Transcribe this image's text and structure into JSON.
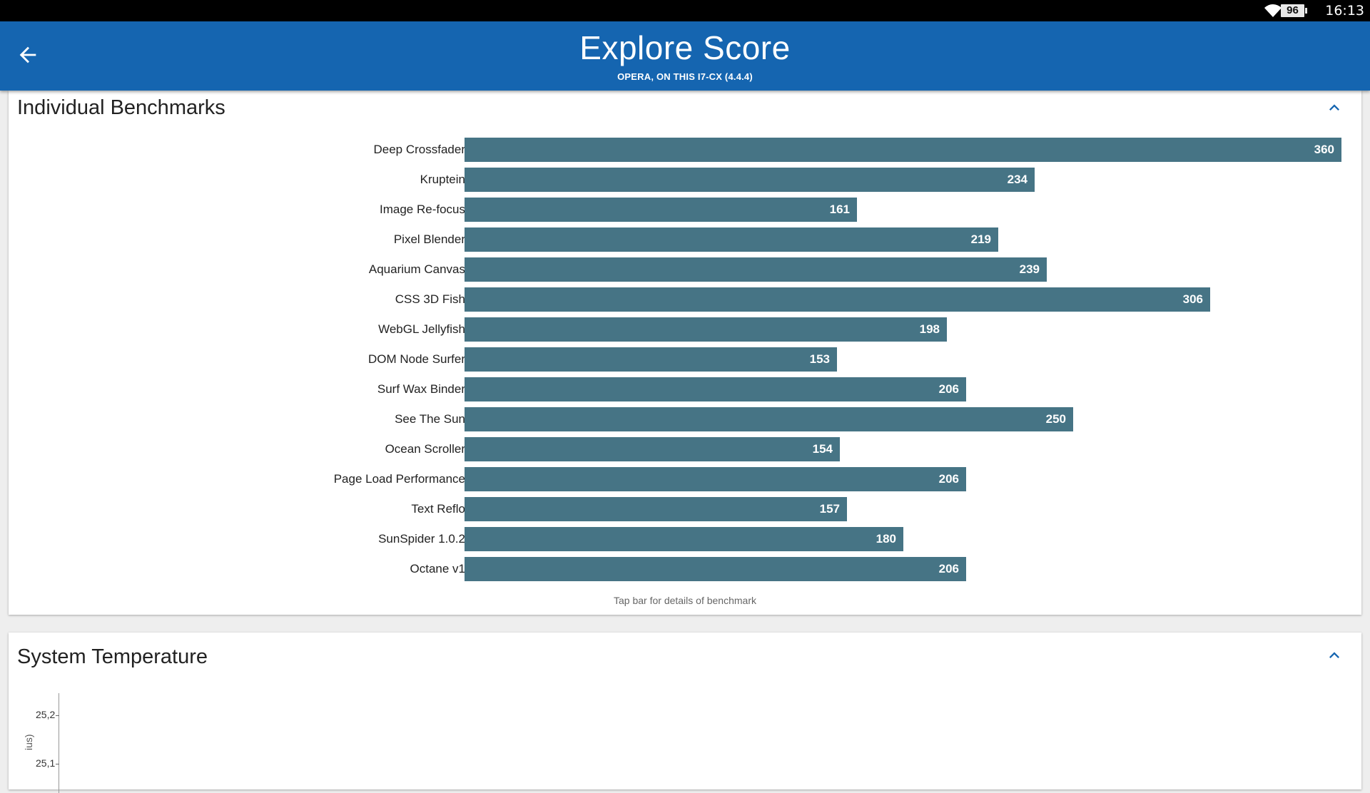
{
  "status_bar": {
    "battery": "96",
    "time": "16:13"
  },
  "app_bar": {
    "title": "Explore Score",
    "subtitle": "OPERA, ON THIS I7-CX (4.4.4)"
  },
  "benchmarks_card": {
    "title": "Individual Benchmarks",
    "hint": "Tap bar for details of benchmark",
    "bar_color": "#467485"
  },
  "chart_data": {
    "type": "bar",
    "orientation": "horizontal",
    "categories": [
      "Deep Crossfader",
      "Kruptein",
      "Image Re-focus",
      "Pixel Blender",
      "Aquarium Canvas",
      "CSS 3D Fish",
      "WebGL Jellyfish",
      "DOM Node Surfer",
      "Surf Wax Binder",
      "See The Sun",
      "Ocean Scroller",
      "Page Load Performance",
      "Text Reflo",
      "SunSpider 1.0.2",
      "Octane v1"
    ],
    "values": [
      360,
      234,
      161,
      219,
      239,
      306,
      198,
      153,
      206,
      250,
      154,
      206,
      157,
      180,
      206
    ],
    "xlim": [
      0,
      360
    ]
  },
  "temperature_card": {
    "title": "System Temperature",
    "y_ticks": [
      "25,2",
      "25,1"
    ],
    "ylabel_partial": "ius)"
  },
  "colors": {
    "app_bar": "#1565b0",
    "accent": "#1565b0"
  }
}
